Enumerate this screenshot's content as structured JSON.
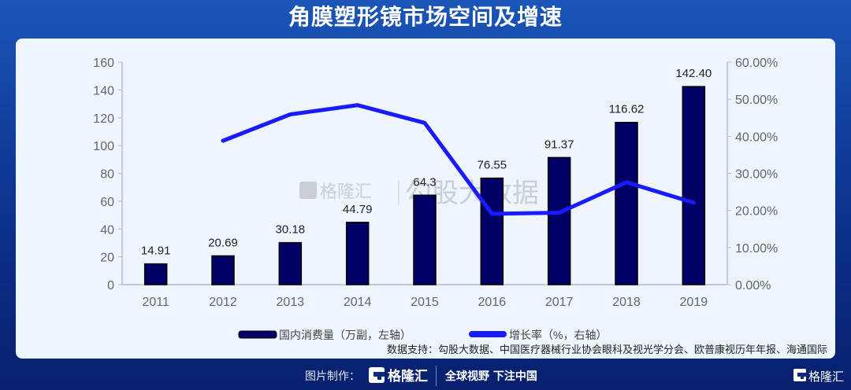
{
  "header": {
    "title": "角膜塑形镜市场空间及增速"
  },
  "chart_data": {
    "type": "bar",
    "title": "角膜塑形镜市场空间及增速",
    "categories": [
      "2011",
      "2012",
      "2013",
      "2014",
      "2015",
      "2016",
      "2017",
      "2018",
      "2019"
    ],
    "series": [
      {
        "name": "国内消费量（万副，左轴）",
        "type": "bar",
        "axis": "left",
        "color": "#000066",
        "values": [
          14.91,
          20.69,
          30.18,
          44.79,
          64.3,
          76.55,
          91.37,
          116.62,
          142.4
        ],
        "labels": [
          "14.91",
          "20.69",
          "30.18",
          "44.79",
          "64.3",
          "76.55",
          "91.37",
          "116.62",
          "142.40"
        ]
      },
      {
        "name": "增长率（%，右轴）",
        "type": "line",
        "axis": "right",
        "color": "#1a1aff",
        "values": [
          null,
          38.8,
          45.9,
          48.4,
          43.6,
          19.1,
          19.4,
          27.6,
          22.1
        ]
      }
    ],
    "left_axis": {
      "ticks": [
        "0",
        "20",
        "40",
        "60",
        "80",
        "100",
        "120",
        "140",
        "160"
      ],
      "ylim": [
        0,
        160
      ]
    },
    "right_axis": {
      "ticks": [
        "0.00%",
        "10.00%",
        "20.00%",
        "30.00%",
        "40.00%",
        "50.00%",
        "60.00%"
      ],
      "ylim": [
        0,
        60
      ]
    },
    "legend": {
      "position": "bottom",
      "items": [
        {
          "label": "国内消费量（万副，左轴）"
        },
        {
          "label": "增长率（%，右轴）"
        }
      ]
    },
    "grid": false
  },
  "source": "数据支持：勾股大数据、中国医疗器械行业协会眼科及视光学分会、欧普康视历年年报、海通国际",
  "watermark": {
    "brand": "格隆汇",
    "data": "勾股大数据"
  },
  "footer": {
    "made_by": "图片制作：",
    "logo": "格隆汇",
    "slogan": "全球视野 下注中国",
    "logo_right": "格隆汇"
  },
  "colors": {
    "bar": "#000066",
    "line": "#1a1aff",
    "header_bg": "#1b56b8",
    "panel_bg": "#eef5fd"
  }
}
